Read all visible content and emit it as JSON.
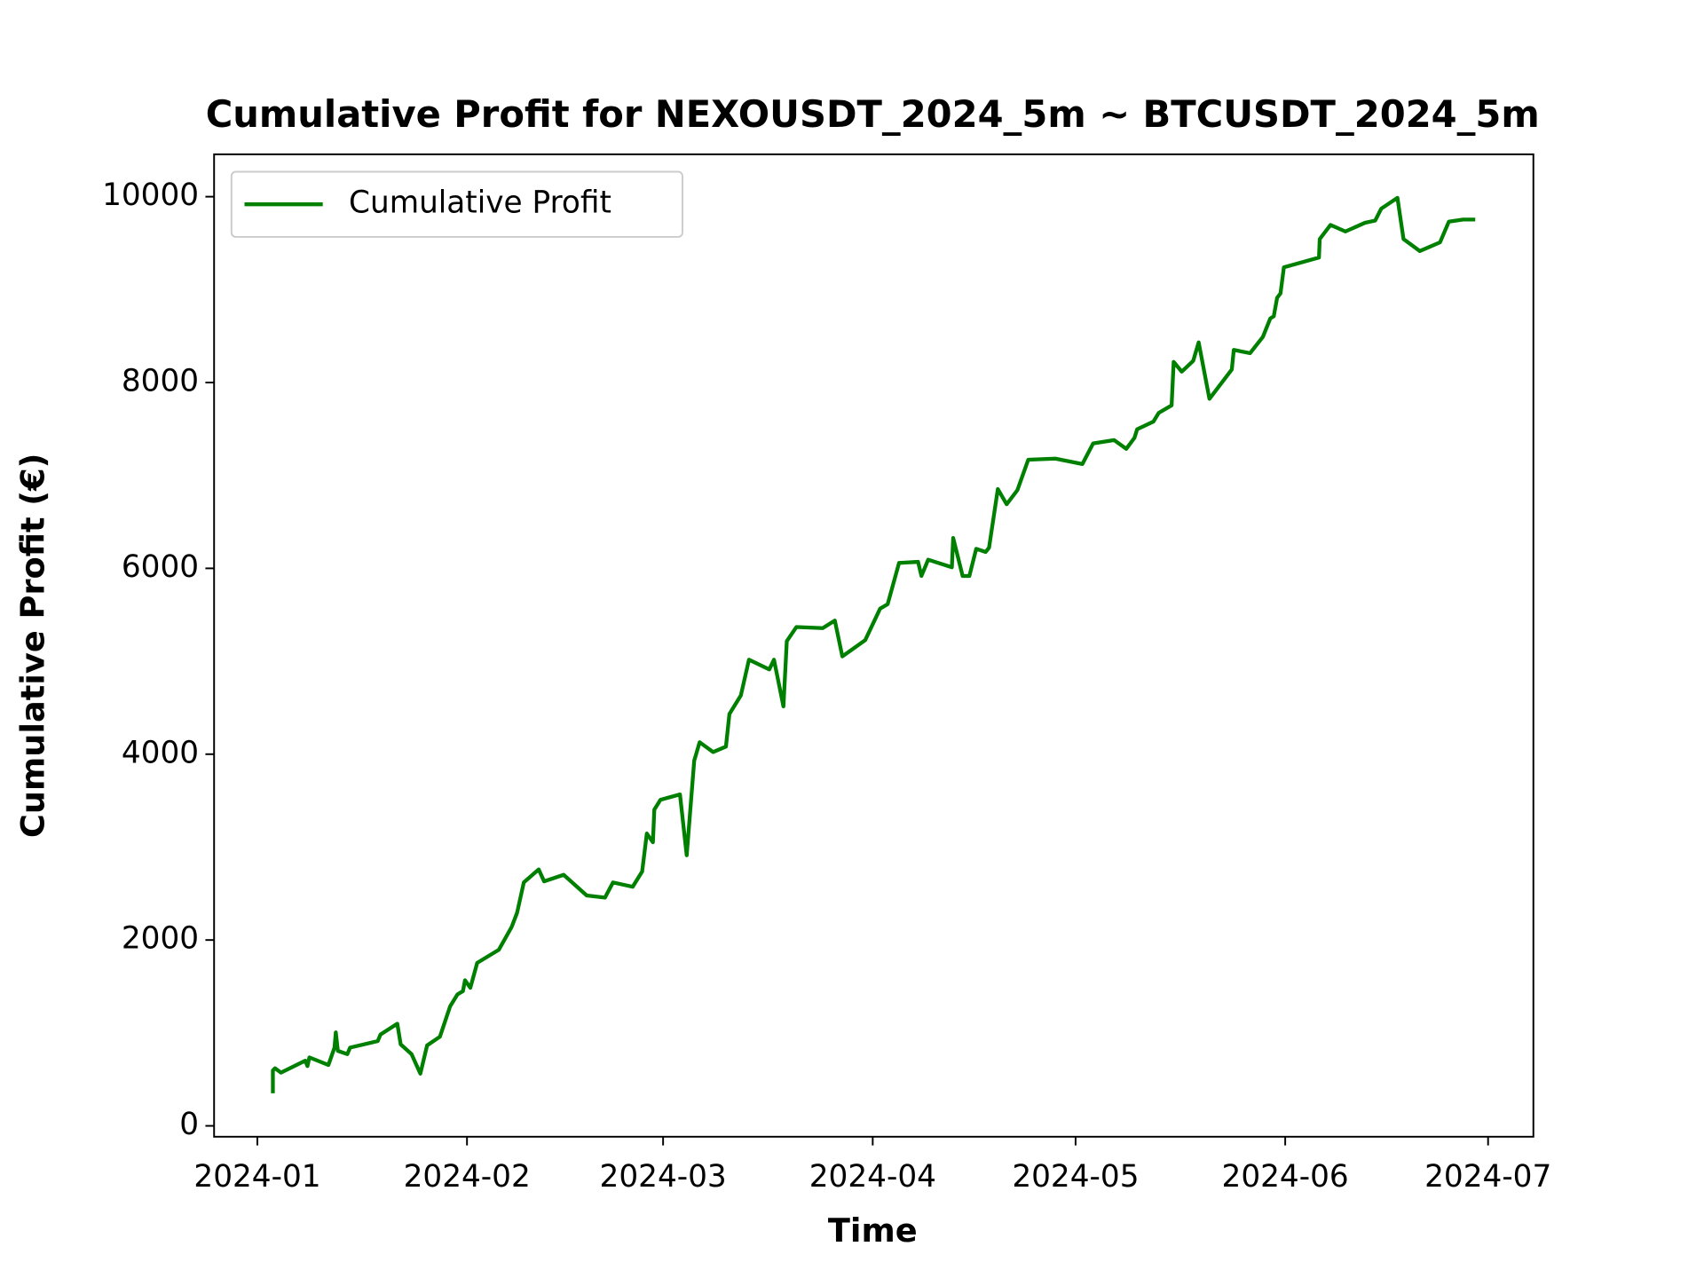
{
  "chart_data": {
    "type": "line",
    "title": "Cumulative Profit for NEXOUSDT_2024_5m ~ BTCUSDT_2024_5m",
    "xlabel": "Time",
    "ylabel": "Cumulative Profit (€)",
    "legend": "upper left",
    "x": [
      2.3,
      2.3,
      2.6,
      3.5,
      7.1,
      7.4,
      7.7,
      10.5,
      11.4,
      11.6,
      11.9,
      13.3,
      13.7,
      17.8,
      18.2,
      20.7,
      21.2,
      22.8,
      24.1,
      25.1,
      27.0,
      28.5,
      29.6,
      30.4,
      30.7,
      31.5,
      32.5,
      35.7,
      37.6,
      38.4,
      39.4,
      41.6,
      42.4,
      45.3,
      48.7,
      51.4,
      52.6,
      55.5,
      56.9,
      57.6,
      58.5,
      58.7,
      59.6,
      62.5,
      63.5,
      64.6,
      65.4,
      67.4,
      69.3,
      69.8,
      71.5,
      72.7,
      75.7,
      76.4,
      77.8,
      78.3,
      79.7,
      83.6,
      85.4,
      86.5,
      89.9,
      92.1,
      93.2,
      94.9,
      97.7,
      98.2,
      99.2,
      102.7,
      102.9,
      104.3,
      105.3,
      106.3,
      107.7,
      108.2,
      109.5,
      110.8,
      112.4,
      114.0,
      118.0,
      122.0,
      123.6,
      126.7,
      128.5,
      129.7,
      130.1,
      132.5,
      133.3,
      135.2,
      135.5,
      136.7,
      138.4,
      139.2,
      140.8,
      144.1,
      144.4,
      146.8,
      148.7,
      149.8,
      150.3,
      150.8,
      151.3,
      151.8,
      157.0,
      157.1,
      158.7,
      160.9,
      163.8,
      165.3,
      166.2,
      168.6,
      169.5,
      171.9,
      174.9,
      176.2,
      178.3,
      180.1
    ],
    "series": [
      {
        "name": "Cumulative Profit",
        "color": "#008000",
        "values": [
          351,
          596,
          620,
          573,
          702,
          643,
          737,
          655,
          842,
          1006,
          807,
          772,
          842,
          912,
          982,
          1099,
          877,
          772,
          561,
          865,
          959,
          1287,
          1415,
          1450,
          1567,
          1485,
          1754,
          1895,
          2140,
          2292,
          2620,
          2760,
          2632,
          2702,
          2480,
          2456,
          2620,
          2573,
          2737,
          3146,
          3053,
          3404,
          3509,
          3567,
          2912,
          3930,
          4129,
          4023,
          4082,
          4433,
          4632,
          5018,
          4912,
          5018,
          4515,
          5216,
          5368,
          5357,
          5439,
          5053,
          5228,
          5567,
          5614,
          6058,
          6070,
          5918,
          6094,
          6012,
          6327,
          5918,
          5918,
          6211,
          6176,
          6222,
          6854,
          6690,
          6842,
          7170,
          7181,
          7123,
          7345,
          7380,
          7287,
          7404,
          7497,
          7579,
          7673,
          7754,
          8222,
          8117,
          8234,
          8433,
          7825,
          8140,
          8351,
          8316,
          8491,
          8690,
          8713,
          8912,
          8959,
          9240,
          9345,
          9544,
          9696,
          9626,
          9719,
          9743,
          9871,
          9988,
          9544,
          9415,
          9509,
          9731,
          9754,
          9754
        ]
      }
    ],
    "xlim": [
      -6.4,
      188.7
    ],
    "xticks": [
      {
        "value": 0,
        "label": "2024-01"
      },
      {
        "value": 31,
        "label": "2024-02"
      },
      {
        "value": 60,
        "label": "2024-03"
      },
      {
        "value": 91,
        "label": "2024-04"
      },
      {
        "value": 121,
        "label": "2024-05"
      },
      {
        "value": 152,
        "label": "2024-06"
      },
      {
        "value": 182,
        "label": "2024-07"
      }
    ],
    "ylim": [
      -117,
      10456
    ],
    "yticks": [
      0,
      2000,
      4000,
      6000,
      8000,
      10000
    ],
    "grid": false
  }
}
